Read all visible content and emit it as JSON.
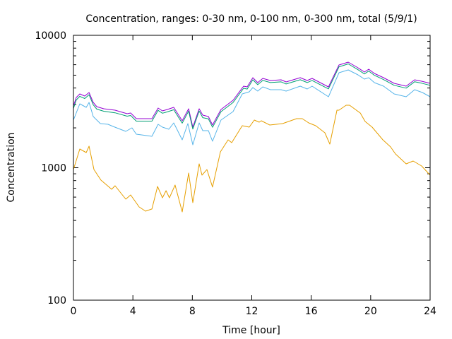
{
  "chart_data": {
    "type": "line",
    "title": "Concentration, ranges: 0-30 nm, 0-100 nm, 0-300 nm, total (5/9/1)",
    "xlabel": "Time [hour]",
    "ylabel": "Concentration",
    "xlim": [
      0,
      24
    ],
    "ylim": [
      100,
      10000
    ],
    "yscale": "log",
    "xticks": [
      0,
      4,
      8,
      12,
      16,
      20,
      24
    ],
    "xtick_labels": [
      "0",
      "4",
      "8",
      "12",
      "16",
      "20",
      "24"
    ],
    "yticks": [
      100,
      1000,
      10000
    ],
    "ytick_labels": [
      "100",
      "1000",
      "10000"
    ],
    "grid": false,
    "series": [
      {
        "name": "total",
        "color": "#9400d3",
        "points": [
          [
            0,
            2929
          ],
          [
            0.19,
            3394
          ],
          [
            0.43,
            3608
          ],
          [
            0.76,
            3477
          ],
          [
            1.05,
            3698
          ],
          [
            1.33,
            3114
          ],
          [
            1.57,
            2893
          ],
          [
            2.04,
            2789
          ],
          [
            2.8,
            2721
          ],
          [
            3.61,
            2559
          ],
          [
            3.85,
            2591
          ],
          [
            4.23,
            2348
          ],
          [
            5.28,
            2348
          ],
          [
            5.7,
            2823
          ],
          [
            5.99,
            2688
          ],
          [
            6.32,
            2754
          ],
          [
            6.75,
            2858
          ],
          [
            7.32,
            2263
          ],
          [
            7.75,
            2789
          ],
          [
            8.03,
            2025
          ],
          [
            8.46,
            2789
          ],
          [
            8.7,
            2497
          ],
          [
            9.08,
            2436
          ],
          [
            9.36,
            2102
          ],
          [
            9.93,
            2754
          ],
          [
            10.74,
            3231
          ],
          [
            11.45,
            4130
          ],
          [
            11.69,
            4080
          ],
          [
            12.07,
            4786
          ],
          [
            12.4,
            4392
          ],
          [
            12.74,
            4727
          ],
          [
            13.26,
            4557
          ],
          [
            13.97,
            4613
          ],
          [
            14.31,
            4446
          ],
          [
            15.26,
            4786
          ],
          [
            15.73,
            4557
          ],
          [
            16.06,
            4727
          ],
          [
            17.06,
            4130
          ],
          [
            17.16,
            4080
          ],
          [
            17.87,
            5970
          ],
          [
            18.49,
            6270
          ],
          [
            19.15,
            5682
          ],
          [
            19.58,
            5280
          ],
          [
            19.87,
            5546
          ],
          [
            20.25,
            5152
          ],
          [
            20.87,
            4786
          ],
          [
            21.58,
            4338
          ],
          [
            22.39,
            4130
          ],
          [
            22.96,
            4613
          ],
          [
            23.43,
            4500
          ],
          [
            24,
            4338
          ]
        ]
      },
      {
        "name": "0-300 nm",
        "color": "#009e73",
        "points": [
          [
            0,
            2800
          ],
          [
            0.19,
            3250
          ],
          [
            0.43,
            3460
          ],
          [
            0.76,
            3330
          ],
          [
            1.05,
            3560
          ],
          [
            1.33,
            2990
          ],
          [
            1.57,
            2770
          ],
          [
            2.04,
            2670
          ],
          [
            2.8,
            2600
          ],
          [
            3.61,
            2450
          ],
          [
            3.85,
            2480
          ],
          [
            4.23,
            2250
          ],
          [
            5.28,
            2250
          ],
          [
            5.7,
            2710
          ],
          [
            5.99,
            2580
          ],
          [
            6.32,
            2640
          ],
          [
            6.75,
            2740
          ],
          [
            7.32,
            2170
          ],
          [
            7.75,
            2680
          ],
          [
            8.03,
            1960
          ],
          [
            8.46,
            2680
          ],
          [
            8.7,
            2390
          ],
          [
            9.08,
            2340
          ],
          [
            9.36,
            2020
          ],
          [
            9.93,
            2650
          ],
          [
            10.74,
            3110
          ],
          [
            11.45,
            3980
          ],
          [
            11.69,
            3930
          ],
          [
            12.07,
            4620
          ],
          [
            12.4,
            4240
          ],
          [
            12.74,
            4560
          ],
          [
            13.26,
            4400
          ],
          [
            13.97,
            4450
          ],
          [
            14.31,
            4290
          ],
          [
            15.26,
            4620
          ],
          [
            15.73,
            4400
          ],
          [
            16.06,
            4560
          ],
          [
            17.06,
            3990
          ],
          [
            17.16,
            3940
          ],
          [
            17.87,
            5780
          ],
          [
            18.49,
            6080
          ],
          [
            19.15,
            5500
          ],
          [
            19.58,
            5110
          ],
          [
            19.87,
            5370
          ],
          [
            20.25,
            4990
          ],
          [
            20.87,
            4630
          ],
          [
            21.58,
            4190
          ],
          [
            22.39,
            3990
          ],
          [
            22.96,
            4460
          ],
          [
            23.43,
            4350
          ],
          [
            24,
            4190
          ]
        ]
      },
      {
        "name": "0-100 nm",
        "color": "#56b4e9",
        "points": [
          [
            0,
            2291
          ],
          [
            0.43,
            3039
          ],
          [
            0.86,
            2858
          ],
          [
            1.05,
            3114
          ],
          [
            1.33,
            2436
          ],
          [
            1.81,
            2154
          ],
          [
            2.33,
            2128
          ],
          [
            2.66,
            2051
          ],
          [
            3.52,
            1882
          ],
          [
            3.94,
            2001
          ],
          [
            4.23,
            1792
          ],
          [
            5.28,
            1727
          ],
          [
            5.7,
            2128
          ],
          [
            5.99,
            2025
          ],
          [
            6.42,
            1953
          ],
          [
            6.75,
            2182
          ],
          [
            7.32,
            1624
          ],
          [
            7.7,
            2154
          ],
          [
            8.03,
            1491
          ],
          [
            8.46,
            2182
          ],
          [
            8.7,
            1905
          ],
          [
            9.08,
            1905
          ],
          [
            9.36,
            1585
          ],
          [
            9.93,
            2291
          ],
          [
            10.74,
            2655
          ],
          [
            11.36,
            3608
          ],
          [
            11.83,
            3744
          ],
          [
            12.07,
            4030
          ],
          [
            12.4,
            3790
          ],
          [
            12.74,
            4080
          ],
          [
            13.26,
            3884
          ],
          [
            13.97,
            3884
          ],
          [
            14.31,
            3790
          ],
          [
            15.26,
            4130
          ],
          [
            15.73,
            3932
          ],
          [
            16.06,
            4130
          ],
          [
            17.16,
            3436
          ],
          [
            17.87,
            5216
          ],
          [
            18.49,
            5479
          ],
          [
            19.15,
            5028
          ],
          [
            19.58,
            4670
          ],
          [
            19.87,
            4786
          ],
          [
            20.25,
            4392
          ],
          [
            20.87,
            4130
          ],
          [
            21.58,
            3608
          ],
          [
            22.39,
            3436
          ],
          [
            22.96,
            3884
          ],
          [
            23.48,
            3698
          ],
          [
            24,
            3436
          ]
        ]
      },
      {
        "name": "0-30 nm",
        "color": "#e69f00",
        "points": [
          [
            0,
            970
          ],
          [
            0.43,
            1384
          ],
          [
            0.86,
            1302
          ],
          [
            1.05,
            1454
          ],
          [
            1.38,
            970
          ],
          [
            1.85,
            807
          ],
          [
            2.57,
            688
          ],
          [
            2.8,
            731
          ],
          [
            3.52,
            579
          ],
          [
            3.85,
            623
          ],
          [
            4.42,
            506
          ],
          [
            4.85,
            470
          ],
          [
            5.28,
            488
          ],
          [
            5.66,
            722
          ],
          [
            5.99,
            593
          ],
          [
            6.23,
            671
          ],
          [
            6.46,
            593
          ],
          [
            6.84,
            740
          ],
          [
            7.32,
            464
          ],
          [
            7.75,
            912
          ],
          [
            8.03,
            545
          ],
          [
            8.46,
            1070
          ],
          [
            8.65,
            879
          ],
          [
            8.98,
            969
          ],
          [
            9.36,
            714
          ],
          [
            9.89,
            1318
          ],
          [
            10.41,
            1624
          ],
          [
            10.65,
            1546
          ],
          [
            11.36,
            2077
          ],
          [
            11.83,
            2025
          ],
          [
            12.17,
            2291
          ],
          [
            12.5,
            2208
          ],
          [
            12.64,
            2263
          ],
          [
            13.21,
            2102
          ],
          [
            14.07,
            2154
          ],
          [
            15.02,
            2348
          ],
          [
            15.4,
            2348
          ],
          [
            15.83,
            2180
          ],
          [
            16.3,
            2077
          ],
          [
            16.92,
            1837
          ],
          [
            17.25,
            1509
          ],
          [
            17.73,
            2720
          ],
          [
            17.87,
            2720
          ],
          [
            18.35,
            2965
          ],
          [
            18.58,
            2965
          ],
          [
            19.3,
            2591
          ],
          [
            19.63,
            2236
          ],
          [
            20.1,
            2025
          ],
          [
            20.82,
            1624
          ],
          [
            21.34,
            1437
          ],
          [
            21.67,
            1271
          ],
          [
            22.39,
            1070
          ],
          [
            22.86,
            1124
          ],
          [
            23.43,
            1031
          ],
          [
            24,
            879
          ]
        ]
      }
    ]
  }
}
